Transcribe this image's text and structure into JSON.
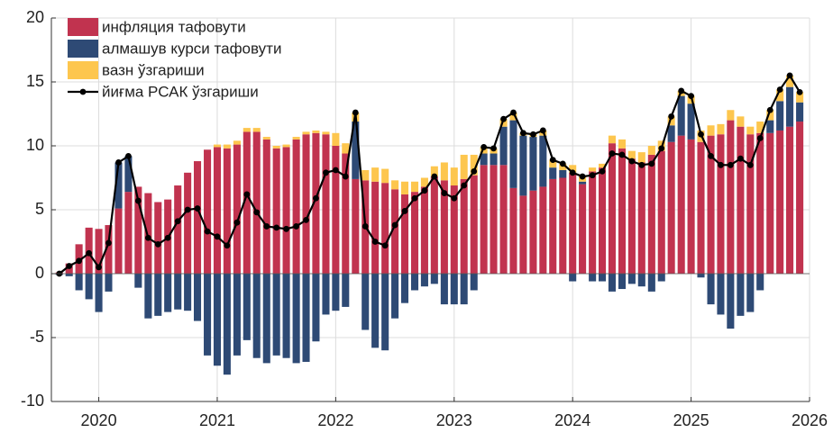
{
  "chart_data": {
    "type": "bar",
    "stacked": true,
    "legend": "upper left",
    "grid": true,
    "xlim": [
      2019.6,
      2026
    ],
    "xticks": [
      2020,
      2021,
      2022,
      2023,
      2024,
      2025,
      2026
    ],
    "ylim": [
      -10,
      20
    ],
    "yticks": [
      -10,
      -5,
      0,
      5,
      10,
      15,
      20
    ],
    "x": [
      2019.667,
      2019.75,
      2019.833,
      2019.917,
      2020,
      2020.083,
      2020.167,
      2020.25,
      2020.333,
      2020.417,
      2020.5,
      2020.583,
      2020.667,
      2020.75,
      2020.833,
      2020.917,
      2021,
      2021.083,
      2021.167,
      2021.25,
      2021.333,
      2021.417,
      2021.5,
      2021.583,
      2021.667,
      2021.75,
      2021.833,
      2021.917,
      2022,
      2022.083,
      2022.167,
      2022.25,
      2022.333,
      2022.417,
      2022.5,
      2022.583,
      2022.667,
      2022.75,
      2022.833,
      2022.917,
      2023,
      2023.083,
      2023.167,
      2023.25,
      2023.333,
      2023.417,
      2023.5,
      2023.583,
      2023.667,
      2023.75,
      2023.833,
      2023.917,
      2024,
      2024.083,
      2024.167,
      2024.25,
      2024.333,
      2024.417,
      2024.5,
      2024.583,
      2024.667,
      2024.75,
      2024.833,
      2024.917,
      2025,
      2025.083,
      2025.167,
      2025.25,
      2025.333,
      2025.417,
      2025.5,
      2025.583,
      2025.667,
      2025.75,
      2025.833,
      2025.917
    ],
    "series": [
      {
        "name": "инфляция тафовути",
        "color": "#c1334f",
        "type": "bar",
        "values": [
          0.1,
          0.8,
          2.3,
          3.6,
          3.5,
          3.8,
          5.1,
          6.4,
          6.8,
          6.3,
          5.6,
          5.8,
          6.9,
          7.9,
          8.8,
          9.7,
          9.9,
          9.8,
          10.1,
          11.1,
          11.1,
          10.5,
          9.8,
          9.9,
          10.5,
          10.9,
          11.0,
          10.9,
          10.0,
          9.4,
          7.4,
          7.3,
          7.2,
          7.1,
          6.6,
          6.2,
          6.4,
          6.8,
          7.6,
          7.3,
          6.9,
          7.4,
          7.7,
          8.5,
          8.5,
          8.5,
          6.7,
          6.1,
          6.5,
          6.8,
          7.4,
          7.5,
          7.9,
          7.0,
          8.0,
          8.3,
          10.2,
          9.8,
          9.0,
          8.7,
          9.3,
          9.6,
          10.3,
          10.8,
          10.5,
          10.3,
          10.8,
          10.9,
          12.0,
          11.5,
          10.9,
          11.0,
          11.0,
          11.2,
          11.5,
          11.9
        ]
      },
      {
        "name": "алмашув курси тафовути",
        "color": "#2e4a75",
        "type": "bar",
        "values": [
          -0.1,
          -0.2,
          -1.3,
          -2.0,
          -3.0,
          -1.4,
          3.6,
          2.8,
          -1.1,
          -3.5,
          -3.3,
          -3.0,
          -2.8,
          -2.9,
          -3.7,
          -6.4,
          -7.2,
          -7.9,
          -6.4,
          -5.2,
          -6.6,
          -7.0,
          -6.4,
          -6.6,
          -7.0,
          -6.9,
          -5.3,
          -3.2,
          -2.9,
          -2.6,
          4.5,
          -4.4,
          -5.8,
          -6.0,
          -3.5,
          -2.3,
          -1.3,
          -1.0,
          -0.8,
          -2.4,
          -2.4,
          -2.4,
          -1.3,
          0.9,
          0.9,
          3.0,
          5.3,
          4.7,
          4.2,
          4.0,
          0.9,
          0.6,
          -0.6,
          0.2,
          -0.6,
          -0.6,
          -1.4,
          -1.2,
          -0.8,
          -1.0,
          -1.4,
          -0.6,
          1.3,
          3.1,
          2.8,
          -0.3,
          -2.4,
          -3.2,
          -4.3,
          -3.3,
          -3.0,
          -1.3,
          1.0,
          2.3,
          3.1,
          1.5
        ]
      },
      {
        "name": "вазн ўзгариши",
        "color": "#fdc64e",
        "type": "bar",
        "values": [
          0,
          0,
          0,
          0,
          0,
          0,
          0,
          0,
          0,
          0,
          0,
          0,
          0,
          0,
          0,
          0,
          0.2,
          0.3,
          0.3,
          0.3,
          0.3,
          0.2,
          0.2,
          0.2,
          0.2,
          0.2,
          0.2,
          0.2,
          1.0,
          0.8,
          0.7,
          0.8,
          1.1,
          1.1,
          0.7,
          1.0,
          0.8,
          0.7,
          0.8,
          1.4,
          1.4,
          1.9,
          1.6,
          0.5,
          0.4,
          0.6,
          0.6,
          0.2,
          0.2,
          0.4,
          0.6,
          0.5,
          0.6,
          0.4,
          0.3,
          0.3,
          0.6,
          0.7,
          0.6,
          0.8,
          0.7,
          0.8,
          0.7,
          0.4,
          0.6,
          0.9,
          0.8,
          0.8,
          0.8,
          0.8,
          0.6,
          0.9,
          0.8,
          0.9,
          0.9,
          0.8
        ]
      },
      {
        "name": "йиғма РСАК ўзгариши",
        "color": "#000000",
        "type": "line",
        "values": [
          0,
          0.6,
          1.0,
          1.6,
          0.5,
          2.4,
          8.7,
          9.2,
          5.7,
          2.8,
          2.3,
          2.8,
          4.1,
          5.0,
          5.1,
          3.3,
          2.9,
          2.2,
          4.0,
          6.2,
          4.8,
          3.7,
          3.6,
          3.5,
          3.7,
          4.2,
          5.9,
          7.9,
          8.1,
          7.6,
          12.6,
          3.7,
          2.5,
          2.2,
          3.8,
          4.9,
          5.9,
          6.5,
          7.6,
          6.3,
          5.9,
          6.9,
          8.0,
          9.9,
          9.8,
          12.1,
          12.6,
          11.0,
          10.9,
          11.2,
          8.9,
          8.6,
          7.9,
          7.6,
          7.7,
          8.0,
          9.4,
          9.3,
          8.8,
          8.5,
          8.6,
          9.8,
          12.3,
          14.3,
          13.9,
          10.9,
          9.2,
          8.5,
          8.5,
          9.0,
          8.5,
          10.6,
          12.8,
          14.4,
          15.5,
          14.2
        ]
      }
    ]
  }
}
